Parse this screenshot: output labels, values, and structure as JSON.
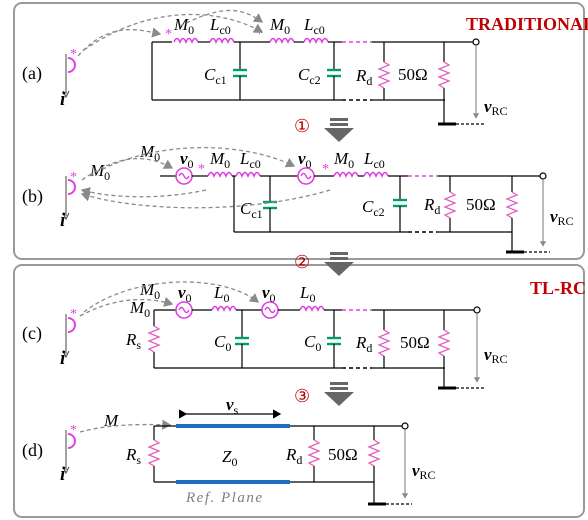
{
  "panels": {
    "traditional_title": "TRADITIONAL",
    "tlrc_title": "TL-RC"
  },
  "labels": {
    "a": "(a)",
    "b": "(b)",
    "c": "(c)",
    "d": "(d)"
  },
  "steps": {
    "s1": "①",
    "s2": "②",
    "s3": "③"
  },
  "symbols": {
    "current": "i",
    "vrc": "v",
    "vrc_sub": "RC",
    "M0": "M",
    "M0_sub": "0",
    "Lc0": "L",
    "Lc0_sub": "c0",
    "Cc1": "C",
    "Cc1_sub": "c1",
    "Cc2": "C",
    "Cc2_sub": "c2",
    "Rd": "R",
    "Rd_sub": "d",
    "ohm50": "50Ω",
    "v0": "v",
    "v0_sub": "0",
    "Rs": "R",
    "Rs_sub": "s",
    "L0": "L",
    "L0_sub": "0",
    "C0": "C",
    "C0_sub": "0",
    "M": "M",
    "vs": "v",
    "vs_sub": "s",
    "Z0": "Z",
    "Z0_sub": "0",
    "ref_plane": "Ref. Plane",
    "star": "*"
  },
  "colors": {
    "frame": "#9a9a9a",
    "inductor": "#e040e0",
    "capacitor": "#00a060",
    "resistor": "#e060c0",
    "source": "#e040e0",
    "tline": "#1f6fc0",
    "title_red": "#c00000",
    "arrow_grey": "#7a7a7a",
    "dashed": "#9a9a9a"
  }
}
